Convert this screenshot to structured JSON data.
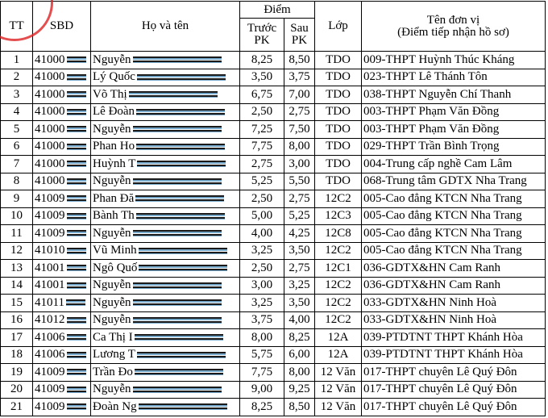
{
  "header": {
    "tt": "TT",
    "sbd": "SBD",
    "name": "Họ và tên",
    "score": "Điểm",
    "before": "Trước PK",
    "after": "Sau PK",
    "class": "Lớp",
    "unit": "Tên đơn vị",
    "unit_sub": "(Điểm tiếp nhận hồ sơ)"
  },
  "table": {
    "rows": [
      [
        "1",
        "41000",
        "Nguyễn",
        "8,25",
        "8,50",
        "TDO",
        "009-THPT Huỳnh Thúc Kháng"
      ],
      [
        "2",
        "41000",
        "Lý Quốc",
        "3,50",
        "3,75",
        "TDO",
        "023-THPT Lê Thánh Tôn"
      ],
      [
        "3",
        "41000",
        "Võ Thị",
        "6,75",
        "7,00",
        "TDO",
        "038-THPT Nguyễn Chí Thanh"
      ],
      [
        "4",
        "41000",
        "Lê Đoàn",
        "2,50",
        "2,75",
        "TDO",
        "003-THPT Phạm Văn Đồng"
      ],
      [
        "5",
        "41000",
        "Nguyễn",
        "7,25",
        "7,50",
        "TDO",
        "003-THPT Phạm Văn Đồng"
      ],
      [
        "6",
        "41000",
        "Phan Ho",
        "7,75",
        "8,00",
        "TDO",
        "029-THPT Trần Bình Trọng"
      ],
      [
        "7",
        "41000",
        "Huỳnh T",
        "2,75",
        "3,00",
        "TDO",
        "004-Trung cấp nghề Cam Lâm"
      ],
      [
        "8",
        "41000",
        "Nguyễn",
        "5,25",
        "5,50",
        "TDO",
        "068-Trung tâm GDTX Nha Trang"
      ],
      [
        "9",
        "41009",
        "Phan Đă",
        "2,50",
        "2,75",
        "12C2",
        "005-Cao đẳng KTCN Nha Trang"
      ],
      [
        "10",
        "41009",
        "Bành Th",
        "5,00",
        "5,25",
        "12C3",
        "005-Cao đẳng KTCN Nha Trang"
      ],
      [
        "11",
        "41009",
        "Nguyễn",
        "4,00",
        "4,25",
        "12C8",
        "005-Cao đẳng KTCN Nha Trang"
      ],
      [
        "12",
        "41010",
        "Vũ Minh",
        "3,25",
        "3,50",
        "12C2",
        "005-Cao đẳng KTCN Nha Trang"
      ],
      [
        "13",
        "41001",
        "Ngô Quố",
        "2,50",
        "2,75",
        "12C1",
        "036-GDTX&HN Cam Ranh"
      ],
      [
        "14",
        "41001",
        "Nguyễn",
        "3,00",
        "3,25",
        "12C2",
        "036-GDTX&HN Cam Ranh"
      ],
      [
        "15",
        "41011",
        "Nguyễn",
        "3,25",
        "3,50",
        "12C2",
        "033-GDTX&HN Ninh Hoà"
      ],
      [
        "16",
        "41012",
        "Nguyễn",
        "3,75",
        "4,00",
        "12C2",
        "033-GDTX&HN Ninh Hoà"
      ],
      [
        "17",
        "41006",
        "Ca Thị I",
        "8,00",
        "8,25",
        "12A",
        "039-PTDTNT THPT Khánh Hòa"
      ],
      [
        "18",
        "41006",
        "Lương T",
        "5,75",
        "6,00",
        "12A",
        "039-PTDTNT THPT Khánh Hòa"
      ],
      [
        "19",
        "41009",
        "Trần Đo",
        "7,75",
        "8,00",
        "12 Văn",
        "017-THPT chuyên Lê Quý Đôn"
      ],
      [
        "20",
        "41009",
        "Nguyễn",
        "9,00",
        "9,25",
        "12 Văn",
        "017-THPT chuyên Lê Quý Đôn"
      ],
      [
        "21",
        "41009",
        "Đoàn Ng",
        "8,25",
        "8,50",
        "12 Văn",
        "017-THPT chuyên Lê Quý Đôn"
      ]
    ]
  }
}
